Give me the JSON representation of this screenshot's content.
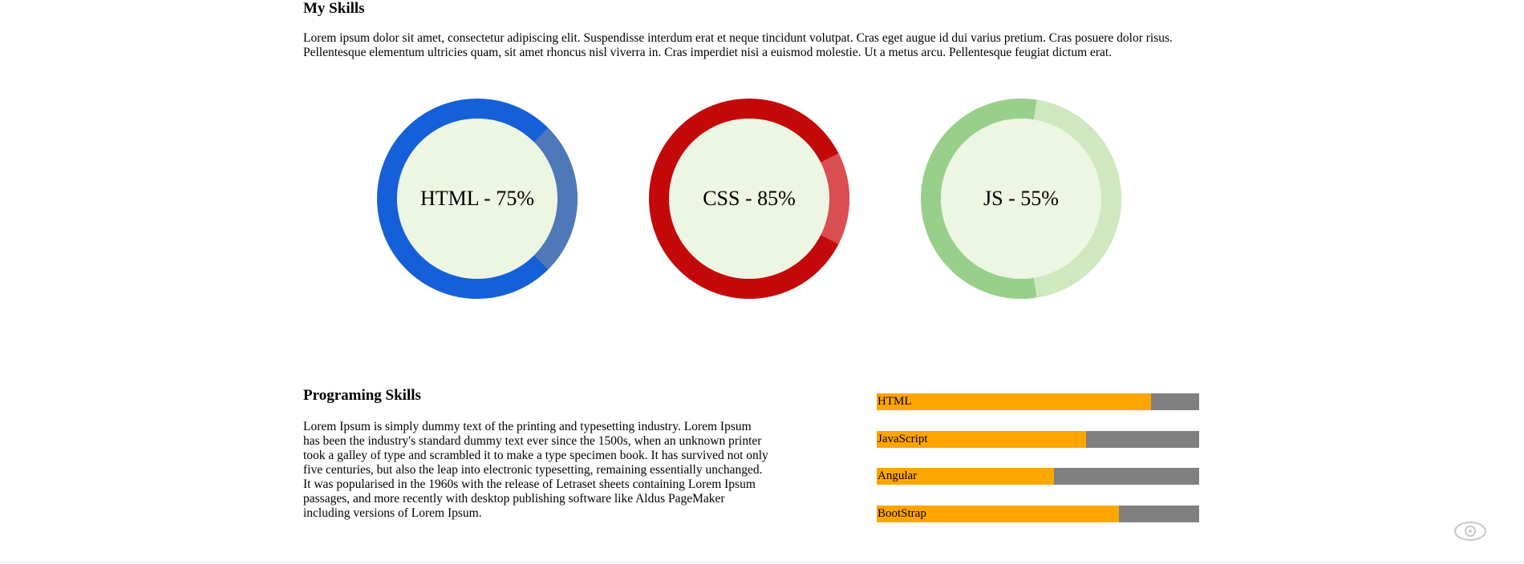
{
  "skills_section": {
    "title": "My Skills",
    "intro": "Lorem ipsum dolor sit amet, consectetur adipiscing elit. Suspendisse interdum erat et neque tincidunt volutpat. Cras eget augue id dui varius pretium. Cras posuere dolor risus. Pellentesque elementum ultricies quam, sit amet rhoncus nisl viverra in. Cras imperdiet nisi a euismod molestie. Ut a metus arcu. Pellentesque feugiat dictum erat."
  },
  "skill_rings": [
    {
      "label": "HTML - 75%",
      "percent": 75,
      "primary_color": "#1560d8",
      "secondary_color": "#4f78b8"
    },
    {
      "label": "CSS - 85%",
      "percent": 85,
      "primary_color": "#c4090a",
      "secondary_color": "#d94e50"
    },
    {
      "label": "JS - 55%",
      "percent": 55,
      "primary_color": "#97cf8b",
      "secondary_color": "#cfe8bf"
    }
  ],
  "ring_center_color": "#edf5e3",
  "programming_section": {
    "title": "Programing Skills",
    "text": "Lorem Ipsum is simply dummy text of the printing and typesetting industry. Lorem Ipsum has been the industry's standard dummy text ever since the 1500s, when an unknown printer took a galley of type and scrambled it to make a type specimen book. It has survived not only five centuries, but also the leap into electronic typesetting, remaining essentially unchanged. It was popularised in the 1960s with the release of Letraset sheets containing Lorem Ipsum passages, and more recently with desktop publishing software like Aldus PageMaker including versions of Lorem Ipsum."
  },
  "progress_bars": [
    {
      "label": "HTML",
      "percent": 85
    },
    {
      "label": "JavaScript",
      "percent": 65
    },
    {
      "label": "Angular",
      "percent": 55
    },
    {
      "label": "BootStrap",
      "percent": 75
    }
  ],
  "bar_colors": {
    "fill": "#ffa500",
    "track": "#808080"
  },
  "watermark_icon": "camera-eye-icon"
}
